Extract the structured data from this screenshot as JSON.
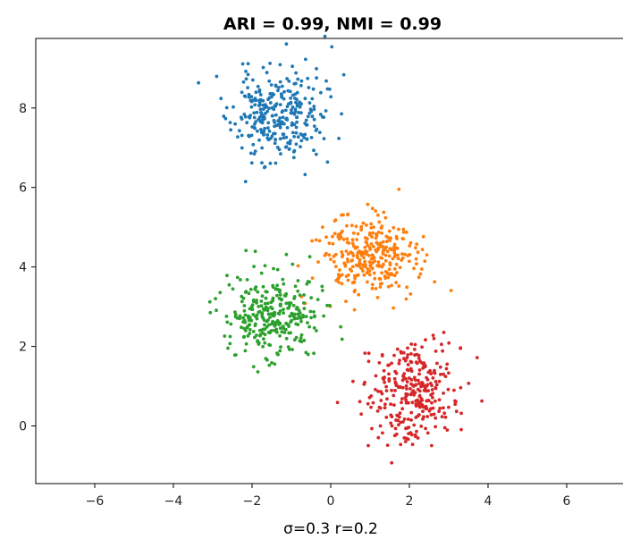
{
  "chart_data": {
    "type": "scatter",
    "title": "ARI = 0.99,    NMI = 0.99",
    "xlabel": "σ=0.3  r=0.2",
    "ylabel": "",
    "xlim": [
      -7.5,
      7.5
    ],
    "ylim": [
      -1.45,
      9.75
    ],
    "xticks": [
      -6,
      -4,
      -2,
      0,
      2,
      4,
      6
    ],
    "yticks": [
      0,
      2,
      4,
      6,
      8
    ],
    "grid": false,
    "legend": "none",
    "series": [
      {
        "color": "#1f77b4",
        "center": [
          -1.35,
          7.8
        ],
        "spread": [
          0.58,
          0.58
        ],
        "n": 300,
        "seed": 11
      },
      {
        "color": "#ff7f0e",
        "center": [
          0.95,
          4.25
        ],
        "spread": [
          0.62,
          0.52
        ],
        "n": 300,
        "seed": 23
      },
      {
        "color": "#2ca02c",
        "center": [
          -1.45,
          2.8
        ],
        "spread": [
          0.6,
          0.52
        ],
        "n": 300,
        "seed": 37
      },
      {
        "color": "#d62728",
        "center": [
          2.05,
          0.85
        ],
        "spread": [
          0.55,
          0.62
        ],
        "n": 300,
        "seed": 53
      }
    ]
  }
}
